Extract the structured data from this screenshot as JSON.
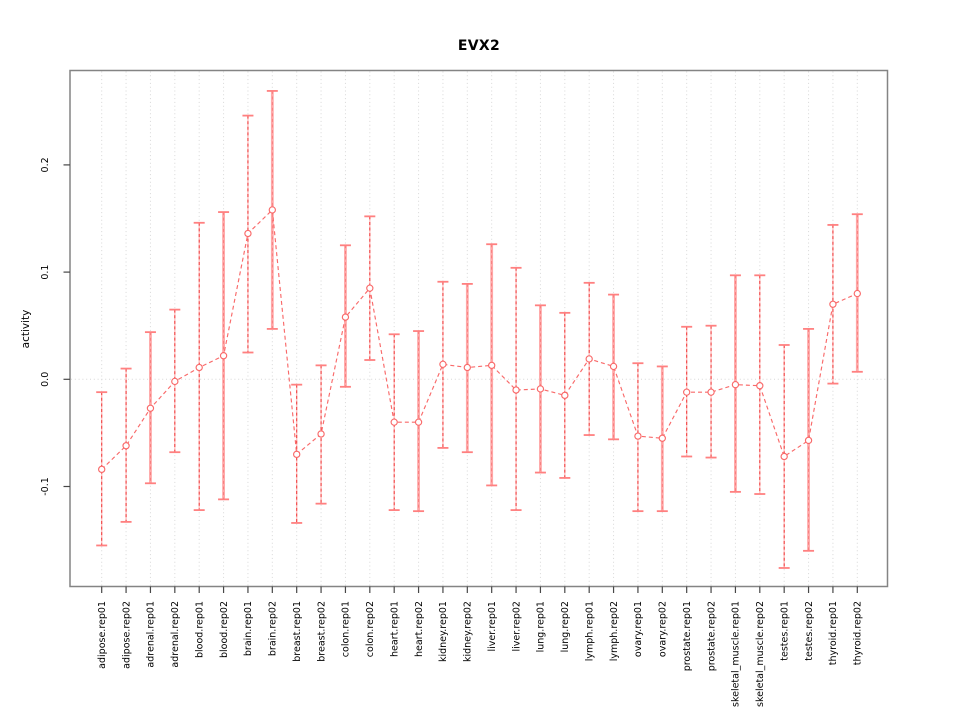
{
  "chart": {
    "title": "EVX2",
    "y_axis_label": "activity"
  },
  "chart_data": {
    "type": "errorbar-line",
    "title": "EVX2",
    "xlabel": "",
    "ylabel": "activity",
    "ylim": [
      -0.194,
      0.288
    ],
    "yticks": [
      -0.1,
      0.0,
      0.1,
      0.2
    ],
    "ytick_labels": [
      "-0.1",
      "0.0",
      "0.1",
      "0.2"
    ],
    "grid": {
      "vertical_dotted_per_category": true,
      "horizontal_zero_line_dotted": true
    },
    "legend_position": "none",
    "categories": [
      "adipose.rep01",
      "adipose.rep02",
      "adrenal.rep01",
      "adrenal.rep02",
      "blood.rep01",
      "blood.rep02",
      "brain.rep01",
      "brain.rep02",
      "breast.rep01",
      "breast.rep02",
      "colon.rep01",
      "colon.rep02",
      "heart.rep01",
      "heart.rep02",
      "kidney.rep01",
      "kidney.rep02",
      "liver.rep01",
      "liver.rep02",
      "lung.rep01",
      "lung.rep02",
      "lymph.rep01",
      "lymph.rep02",
      "ovary.rep01",
      "ovary.rep02",
      "prostate.rep01",
      "prostate.rep02",
      "skeletal_muscle.rep01",
      "skeletal_muscle.rep02",
      "testes.rep01",
      "testes.rep02",
      "thyroid.rep01",
      "thyroid.rep02"
    ],
    "series": [
      {
        "name": "activity",
        "centers": [
          -0.084,
          -0.062,
          -0.027,
          -0.002,
          0.011,
          0.022,
          0.136,
          0.158,
          -0.07,
          -0.051,
          0.058,
          0.085,
          -0.04,
          -0.04,
          0.014,
          0.011,
          0.013,
          -0.01,
          -0.009,
          -0.015,
          0.019,
          0.012,
          -0.053,
          -0.055,
          -0.012,
          -0.012,
          -0.005,
          -0.006,
          -0.072,
          -0.057,
          0.07,
          0.08
        ],
        "lower": [
          -0.155,
          -0.133,
          -0.097,
          -0.068,
          -0.122,
          -0.112,
          0.025,
          0.047,
          -0.134,
          -0.116,
          -0.007,
          0.018,
          -0.122,
          -0.123,
          -0.064,
          -0.068,
          -0.099,
          -0.122,
          -0.087,
          -0.092,
          -0.052,
          -0.056,
          -0.123,
          -0.123,
          -0.072,
          -0.073,
          -0.105,
          -0.107,
          -0.176,
          -0.16,
          -0.004,
          0.007
        ],
        "upper": [
          -0.012,
          0.01,
          0.044,
          0.065,
          0.146,
          0.156,
          0.246,
          0.269,
          -0.005,
          0.013,
          0.125,
          0.152,
          0.042,
          0.045,
          0.091,
          0.089,
          0.126,
          0.104,
          0.069,
          0.062,
          0.09,
          0.079,
          0.015,
          0.012,
          0.049,
          0.05,
          0.097,
          0.097,
          0.032,
          0.047,
          0.144,
          0.154
        ],
        "bar_styles": [
          "dashed",
          "dashed",
          "solid",
          "dashed",
          "dashed",
          "solid",
          "dashed",
          "solid",
          "dashed",
          "dashed",
          "solid",
          "dashed",
          "dashed",
          "solid",
          "dashed",
          "solid",
          "solid",
          "dashed",
          "solid",
          "dashed",
          "dashed",
          "solid",
          "dashed",
          "solid",
          "dashed",
          "dashed",
          "solid",
          "dashed",
          "dashed",
          "solid",
          "dashed",
          "solid"
        ]
      }
    ],
    "colors": {
      "point": "#f96a6a",
      "line": "#f96a6a",
      "bar_solid": "#ffa8a8",
      "bar_dashed": "#ef4040",
      "bar_underlay": "#ffc0c0",
      "cap": "#ff8080",
      "grid": "#d8d8d8",
      "box": "#848484",
      "tick": "#474747",
      "text": "#000000"
    }
  }
}
